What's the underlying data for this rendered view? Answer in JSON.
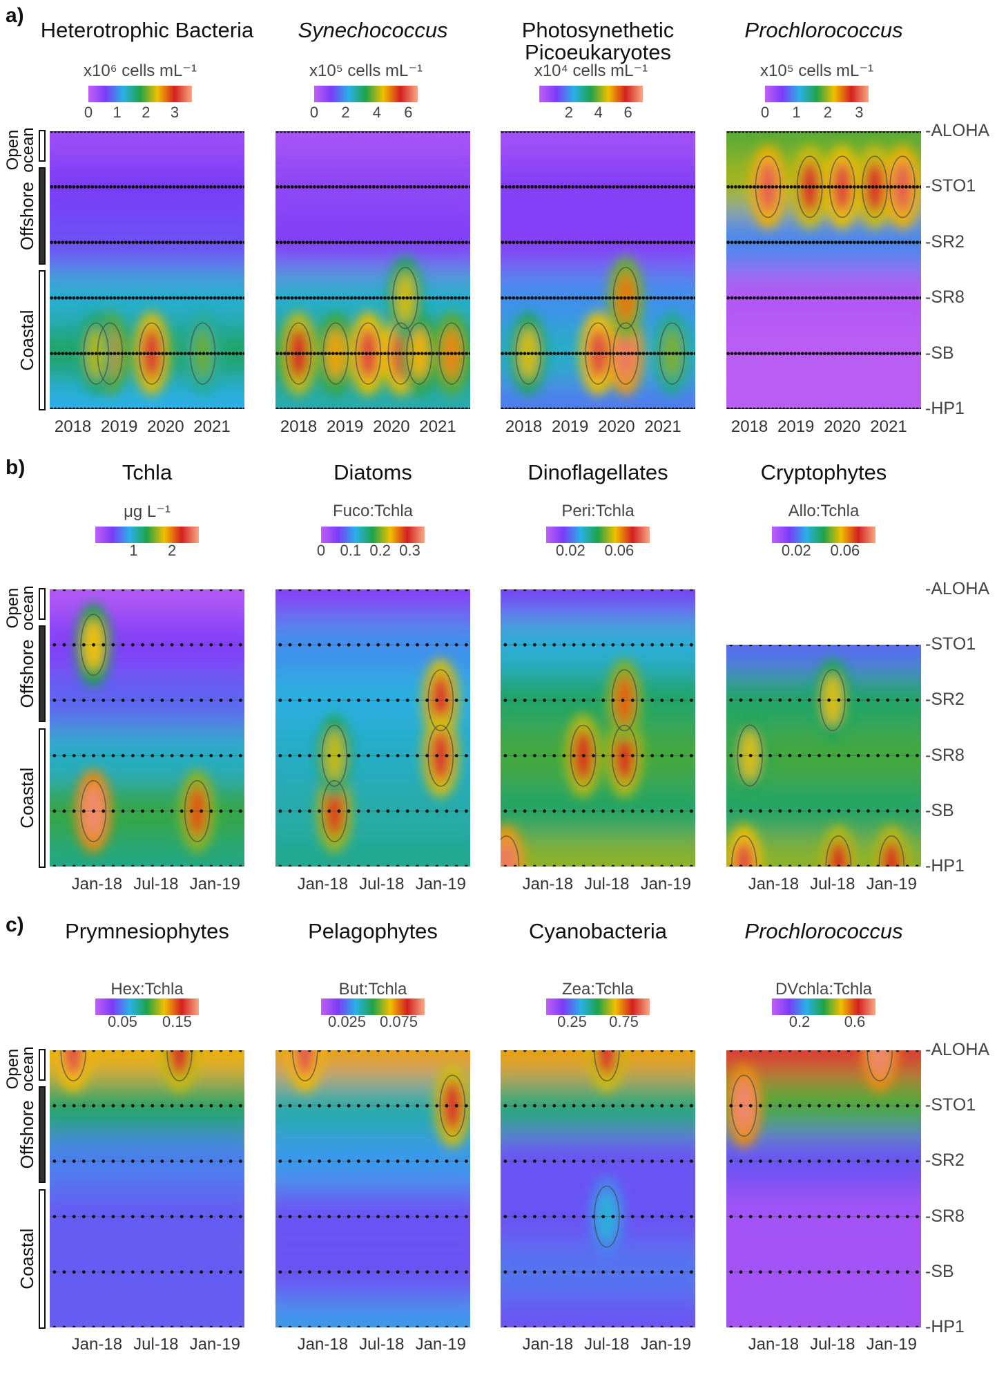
{
  "panel_letters": [
    "a)",
    "b)",
    "c)"
  ],
  "regions": [
    {
      "label": "Open ocean",
      "fill": "#ffffff"
    },
    {
      "label": "Offshore",
      "fill": "#333333"
    },
    {
      "label": "Coastal",
      "fill": "#ffffff"
    }
  ],
  "stations": [
    "ALOHA",
    "STO1",
    "SR2",
    "SR8",
    "SB",
    "HP1"
  ],
  "colors": [
    "#c060f5",
    "#7a3cf7",
    "#2ab0e8",
    "#1fa34a",
    "#f0c000",
    "#d42020",
    "#f8a884"
  ],
  "chart_data": [
    {
      "type": "heatmap",
      "row": "a",
      "title": "Heterotrophic Bacteria",
      "italic": false,
      "unit": "x10⁶ cells mL⁻¹",
      "range": [
        0,
        3.6
      ],
      "ticks": [
        "0",
        "1",
        "2",
        "3"
      ],
      "tick_values": [
        0,
        1,
        2,
        3
      ],
      "xlim": [
        2017.5,
        2021.7
      ],
      "xticks": [
        "2018",
        "2019",
        "2020",
        "2021"
      ],
      "xtick_values": [
        2018,
        2019,
        2020,
        2021
      ],
      "stations": [
        "ALOHA",
        "STO1",
        "SR2",
        "SR8",
        "SB",
        "HP1"
      ],
      "levels": [
        0.3,
        0.6,
        0.7,
        1.3,
        1.7,
        1.2
      ],
      "hotspots": [
        [
          2018.8,
          "SB",
          2.6
        ],
        [
          2019.7,
          "SB",
          3.1
        ],
        [
          2020.8,
          "SB",
          2.0
        ],
        [
          2018.5,
          "SB",
          2.2
        ]
      ],
      "sample_step": 0.08
    },
    {
      "type": "heatmap",
      "row": "a",
      "title": "Synechococcus",
      "italic": true,
      "unit": "x10⁵ cells mL⁻¹",
      "range": [
        0,
        6.6
      ],
      "ticks": [
        "0",
        "2",
        "4",
        "6"
      ],
      "tick_values": [
        0,
        2,
        4,
        6
      ],
      "xlim": [
        2017.5,
        2021.7
      ],
      "xticks": [
        "2018",
        "2019",
        "2020",
        "2021"
      ],
      "xtick_values": [
        2018,
        2019,
        2020,
        2021
      ],
      "stations": [
        "ALOHA",
        "STO1",
        "SR2",
        "SR8",
        "SB",
        "HP1"
      ],
      "levels": [
        0.4,
        0.8,
        1.0,
        2.4,
        3.2,
        2.6
      ],
      "hotspots": [
        [
          2018.0,
          "SB",
          5.5
        ],
        [
          2018.8,
          "SB",
          4.6
        ],
        [
          2019.5,
          "SB",
          5.8
        ],
        [
          2020.2,
          "SB",
          5.8
        ],
        [
          2020.6,
          "SB",
          4.5
        ],
        [
          2021.3,
          "SB",
          4.8
        ],
        [
          2020.3,
          "SR8",
          4.2
        ]
      ],
      "sample_step": 0.08
    },
    {
      "type": "heatmap",
      "row": "a",
      "title": "Photosynethetic Picoeukaryotes",
      "italic": false,
      "unit": "x10⁴ cells mL⁻¹",
      "range": [
        0,
        7
      ],
      "ticks": [
        "2",
        "4",
        "6"
      ],
      "tick_values": [
        2,
        4,
        6
      ],
      "xlim": [
        2017.5,
        2021.7
      ],
      "xticks": [
        "2018",
        "2019",
        "2020",
        "2021"
      ],
      "xtick_values": [
        2018,
        2019,
        2020,
        2021
      ],
      "stations": [
        "ALOHA",
        "STO1",
        "SR2",
        "SR8",
        "SB",
        "HP1"
      ],
      "levels": [
        0.5,
        1.0,
        1.0,
        2.0,
        2.6,
        1.8
      ],
      "hotspots": [
        [
          2018.1,
          "SB",
          4.5
        ],
        [
          2019.6,
          "SB",
          6.2
        ],
        [
          2020.2,
          "SB",
          6.6
        ],
        [
          2020.2,
          "SR8",
          5.2
        ],
        [
          2021.2,
          "SB",
          4.0
        ]
      ],
      "sample_step": 0.08
    },
    {
      "type": "heatmap",
      "row": "a",
      "title": "Prochlorococcus",
      "italic": true,
      "unit": "x10⁵ cells mL⁻¹",
      "range": [
        0,
        3.3
      ],
      "ticks": [
        "0",
        "1",
        "2",
        "3"
      ],
      "tick_values": [
        0,
        1,
        2,
        3
      ],
      "xlim": [
        2017.5,
        2021.7
      ],
      "xticks": [
        "2018",
        "2019",
        "2020",
        "2021"
      ],
      "xtick_values": [
        2018,
        2019,
        2020,
        2021
      ],
      "stations": [
        "ALOHA",
        "STO1",
        "SR2",
        "SR8",
        "SB",
        "HP1"
      ],
      "levels": [
        1.8,
        2.0,
        0.9,
        0.1,
        0.05,
        0.05
      ],
      "hotspots": [
        [
          2018.4,
          "STO1",
          3.0
        ],
        [
          2019.3,
          "STO1",
          2.8
        ],
        [
          2020.0,
          "STO1",
          2.9
        ],
        [
          2020.7,
          "STO1",
          2.8
        ],
        [
          2021.3,
          "STO1",
          3.0
        ]
      ],
      "sample_step": 0.08
    },
    {
      "type": "heatmap",
      "row": "b",
      "title": "Tchla",
      "italic": false,
      "unit": "μg L⁻¹",
      "range": [
        0,
        2.7
      ],
      "ticks": [
        "1",
        "2"
      ],
      "tick_values": [
        1,
        2
      ],
      "xlim": [
        2017.6,
        2019.25
      ],
      "xticks": [
        "Jan-18",
        "Jul-18",
        "Jan-19"
      ],
      "xtick_values": [
        2018.0,
        2018.5,
        2019.0
      ],
      "stations": [
        "ALOHA",
        "STO1",
        "SR2",
        "SR8",
        "SB",
        "HP1"
      ],
      "levels": [
        0.1,
        0.4,
        0.6,
        1.0,
        1.4,
        1.2
      ],
      "hotspots": [
        [
          2017.97,
          "SB",
          2.6
        ],
        [
          2018.85,
          "SB",
          2.1
        ],
        [
          2017.97,
          "STO1",
          1.8
        ]
      ],
      "sample_step": 0.083
    },
    {
      "type": "heatmap",
      "row": "b",
      "title": "Diatoms",
      "italic": false,
      "unit": "Fuco:Tchla",
      "range": [
        0,
        0.35
      ],
      "ticks": [
        "0",
        "0.1",
        "0.2",
        "0.3"
      ],
      "tick_values": [
        0,
        0.1,
        0.2,
        0.3
      ],
      "xlim": [
        2017.6,
        2019.25
      ],
      "xticks": [
        "Jan-18",
        "Jul-18",
        "Jan-19"
      ],
      "xtick_values": [
        2018.0,
        2018.5,
        2019.0
      ],
      "stations": [
        "ALOHA",
        "STO1",
        "SR2",
        "SR8",
        "SB",
        "HP1"
      ],
      "levels": [
        0.05,
        0.1,
        0.12,
        0.13,
        0.14,
        0.15
      ],
      "hotspots": [
        [
          2018.1,
          "SB",
          0.28
        ],
        [
          2018.1,
          "SR8",
          0.22
        ],
        [
          2019.0,
          "SR2",
          0.3
        ],
        [
          2019.0,
          "SR8",
          0.3
        ]
      ],
      "sample_step": 0.083
    },
    {
      "type": "heatmap",
      "row": "b",
      "title": "Dinoflagellates",
      "italic": false,
      "unit": "Peri:Tchla",
      "range": [
        0,
        0.085
      ],
      "ticks": [
        "0.02",
        "0.06"
      ],
      "tick_values": [
        0.02,
        0.06
      ],
      "xlim": [
        2017.6,
        2019.25
      ],
      "xticks": [
        "Jan-18",
        "Jul-18",
        "Jan-19"
      ],
      "xtick_values": [
        2018.0,
        2018.5,
        2019.0
      ],
      "stations": [
        "ALOHA",
        "STO1",
        "SR2",
        "SR8",
        "SB",
        "HP1"
      ],
      "levels": [
        0.015,
        0.03,
        0.04,
        0.045,
        0.04,
        0.05
      ],
      "hotspots": [
        [
          2018.3,
          "SR8",
          0.07
        ],
        [
          2018.65,
          "SR8",
          0.07
        ],
        [
          2018.65,
          "SR2",
          0.065
        ],
        [
          2017.65,
          "HP1",
          0.08
        ]
      ],
      "sample_step": 0.083
    },
    {
      "type": "heatmap",
      "row": "b",
      "title": "Cryptophytes",
      "italic": false,
      "unit": "Allo:Tchla",
      "range": [
        0,
        0.085
      ],
      "ticks": [
        "0.02",
        "0.06"
      ],
      "tick_values": [
        0.02,
        0.06
      ],
      "xlim": [
        2017.6,
        2019.25
      ],
      "xticks": [
        "Jan-18",
        "Jul-18",
        "Jan-19"
      ],
      "xtick_values": [
        2018.0,
        2018.5,
        2019.0
      ],
      "stations": [
        "STO1",
        "SR2",
        "SR8",
        "SB",
        "HP1"
      ],
      "levels": [
        0.02,
        0.04,
        0.045,
        0.04,
        0.05
      ],
      "hotspots": [
        [
          2017.75,
          "HP1",
          0.075
        ],
        [
          2018.55,
          "HP1",
          0.07
        ],
        [
          2019.0,
          "HP1",
          0.07
        ],
        [
          2018.5,
          "SR2",
          0.055
        ],
        [
          2017.8,
          "SR8",
          0.055
        ]
      ],
      "sample_step": 0.083
    },
    {
      "type": "heatmap",
      "row": "c",
      "title": "Prymnesiophytes",
      "italic": false,
      "unit": "Hex:Tchla",
      "range": [
        0,
        0.19
      ],
      "ticks": [
        "0.05",
        "0.15"
      ],
      "tick_values": [
        0.05,
        0.15
      ],
      "xlim": [
        2017.6,
        2019.25
      ],
      "xticks": [
        "Jan-18",
        "Jul-18",
        "Jan-19"
      ],
      "xtick_values": [
        2018.0,
        2018.5,
        2019.0
      ],
      "stations": [
        "ALOHA",
        "STO1",
        "SR2",
        "SR8",
        "SB",
        "HP1"
      ],
      "levels": [
        0.13,
        0.09,
        0.05,
        0.04,
        0.04,
        0.04
      ],
      "hotspots": [
        [
          2017.8,
          "ALOHA",
          0.17
        ],
        [
          2018.7,
          "ALOHA",
          0.16
        ]
      ],
      "sample_step": 0.083
    },
    {
      "type": "heatmap",
      "row": "c",
      "title": "Pelagophytes",
      "italic": false,
      "unit": "But:Tchla",
      "range": [
        0,
        0.1
      ],
      "ticks": [
        "0.025",
        "0.075"
      ],
      "tick_values": [
        0.025,
        0.075
      ],
      "xlim": [
        2017.6,
        2019.25
      ],
      "xticks": [
        "Jan-18",
        "Jul-18",
        "Jan-19"
      ],
      "xtick_values": [
        2018.0,
        2018.5,
        2019.0
      ],
      "stations": [
        "ALOHA",
        "STO1",
        "SR2",
        "SR8",
        "SB",
        "HP1"
      ],
      "levels": [
        0.07,
        0.04,
        0.03,
        0.02,
        0.02,
        0.03
      ],
      "hotspots": [
        [
          2017.85,
          "ALOHA",
          0.09
        ],
        [
          2019.1,
          "STO1",
          0.085
        ]
      ],
      "sample_step": 0.083
    },
    {
      "type": "heatmap",
      "row": "c",
      "title": "Cyanobacteria",
      "italic": false,
      "unit": "Zea:Tchla",
      "range": [
        0,
        1
      ],
      "ticks": [
        "0.25",
        "0.75"
      ],
      "tick_values": [
        0.25,
        0.75
      ],
      "xlim": [
        2017.6,
        2019.25
      ],
      "xticks": [
        "Jan-18",
        "Jul-18",
        "Jan-19"
      ],
      "xtick_values": [
        2018.0,
        2018.5,
        2019.0
      ],
      "stations": [
        "ALOHA",
        "STO1",
        "SR2",
        "SR8",
        "SB",
        "HP1"
      ],
      "levels": [
        0.7,
        0.45,
        0.2,
        0.2,
        0.25,
        0.2
      ],
      "hotspots": [
        [
          2018.5,
          "ALOHA",
          0.85
        ],
        [
          2018.5,
          "SR8",
          0.35
        ]
      ],
      "sample_step": 0.083
    },
    {
      "type": "heatmap",
      "row": "c",
      "title": "Prochlorococcus",
      "italic": true,
      "unit": "DVchla:Tchla",
      "range": [
        0,
        0.75
      ],
      "ticks": [
        "0.2",
        "0.6"
      ],
      "tick_values": [
        0.2,
        0.6
      ],
      "xlim": [
        2017.6,
        2019.25
      ],
      "xticks": [
        "Jan-18",
        "Jul-18",
        "Jan-19"
      ],
      "xtick_values": [
        2018.0,
        2018.5,
        2019.0
      ],
      "stations": [
        "ALOHA",
        "STO1",
        "SR2",
        "SR8",
        "SB",
        "HP1"
      ],
      "levels": [
        0.65,
        0.4,
        0.15,
        0.05,
        0.05,
        0.05
      ],
      "hotspots": [
        [
          2017.75,
          "STO1",
          0.72
        ],
        [
          2018.9,
          "ALOHA",
          0.72
        ]
      ],
      "sample_step": 0.083
    }
  ]
}
